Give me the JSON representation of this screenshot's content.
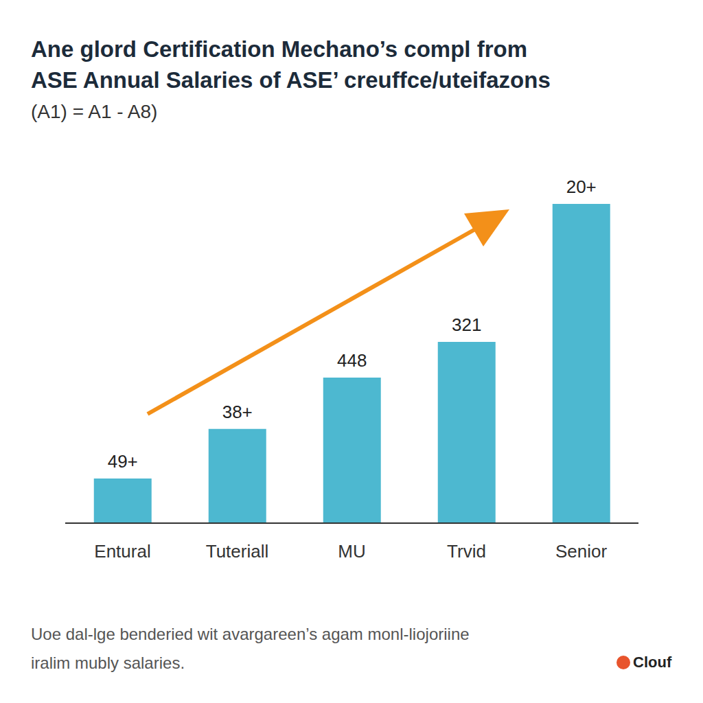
{
  "chart_data": {
    "type": "bar",
    "title": [
      "Ane glord Certification Mechano’s compl from",
      "ASE Annual Salaries of ASE’ creuffce/uteifazons"
    ],
    "subtitle": "(A1) = A1 - A8)",
    "categories": [
      "Entural",
      "Tuteriall",
      "MU",
      "Trvid",
      "Senior"
    ],
    "values": [
      14,
      29.5,
      45.6,
      56.8,
      100
    ],
    "annotations": [
      "49+",
      "38+",
      "448",
      "321",
      "20+"
    ],
    "color": "#4db8d0",
    "ylim": [
      0,
      100
    ],
    "grid": false,
    "tick_labels": "x",
    "footnote": [
      "Uoe dal-lge benderied wit avargareen’s agam monl-liojoriine",
      "iralim mubly salaries."
    ],
    "logo": "Clouf"
  }
}
